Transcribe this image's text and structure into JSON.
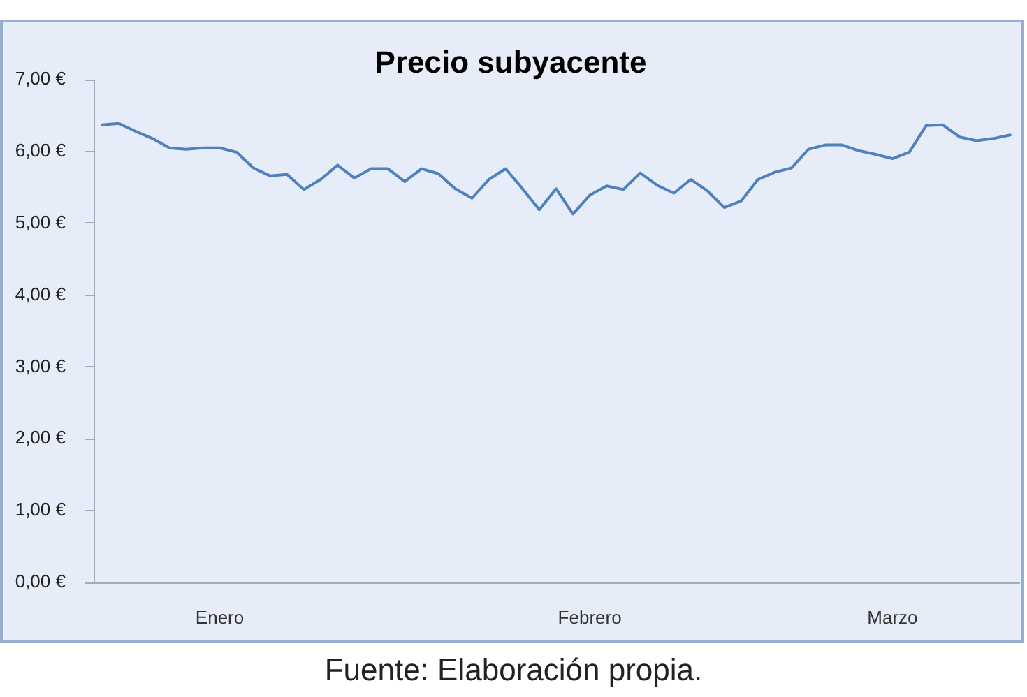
{
  "chart_data": {
    "type": "line",
    "title": "Precio subyacente",
    "categories": [
      null,
      null,
      null,
      null,
      null,
      null,
      null,
      "Enero",
      null,
      null,
      null,
      null,
      null,
      null,
      null,
      null,
      null,
      null,
      null,
      null,
      null,
      null,
      null,
      null,
      null,
      null,
      null,
      null,
      null,
      "Febrero",
      null,
      null,
      null,
      null,
      null,
      null,
      null,
      null,
      null,
      null,
      null,
      null,
      null,
      null,
      null,
      null,
      null,
      "Marzo",
      null,
      null,
      null,
      null,
      null,
      null,
      null
    ],
    "values": [
      6.37,
      6.39,
      6.28,
      6.18,
      6.05,
      6.03,
      6.05,
      6.05,
      5.99,
      5.77,
      5.66,
      5.68,
      5.47,
      5.61,
      5.81,
      5.63,
      5.76,
      5.76,
      5.58,
      5.76,
      5.69,
      5.48,
      5.35,
      5.61,
      5.76,
      5.48,
      5.19,
      5.48,
      5.13,
      5.39,
      5.52,
      5.47,
      5.7,
      5.53,
      5.42,
      5.61,
      5.45,
      5.22,
      5.31,
      5.61,
      5.71,
      5.77,
      6.03,
      6.09,
      6.09,
      6.01,
      5.96,
      5.9,
      5.99,
      6.36,
      6.37,
      6.2,
      6.15,
      6.18,
      6.23
    ],
    "color": "#4f81bd",
    "ylim": [
      0,
      7
    ],
    "yticks": [
      {
        "value": 0,
        "label": "0,00 €"
      },
      {
        "value": 1,
        "label": "1,00 €"
      },
      {
        "value": 2,
        "label": "2,00 €"
      },
      {
        "value": 3,
        "label": "3,00 €"
      },
      {
        "value": 4,
        "label": "4,00 €"
      },
      {
        "value": 5,
        "label": "5,00 €"
      },
      {
        "value": 6,
        "label": "6,00 €"
      },
      {
        "value": 7,
        "label": "7,00 €"
      }
    ],
    "annotations": [
      "Fuente: Elaboración propia."
    ]
  }
}
